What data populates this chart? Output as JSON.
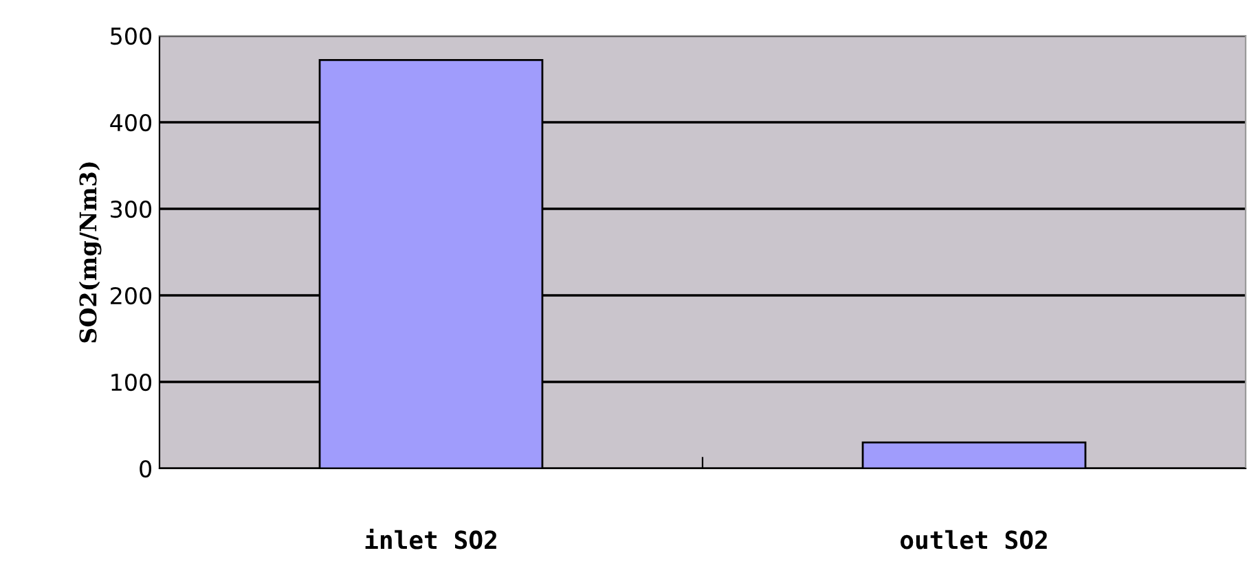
{
  "chart_data": {
    "type": "bar",
    "ylabel": "SO2(mg/Nm3)",
    "categories": [
      "inlet SO2",
      "outlet SO2"
    ],
    "values": [
      472,
      30
    ],
    "color": "#a09cfc",
    "ylim": [
      0,
      500
    ],
    "yticks": [
      0,
      100,
      200,
      300,
      400,
      500
    ],
    "grid": "y"
  }
}
